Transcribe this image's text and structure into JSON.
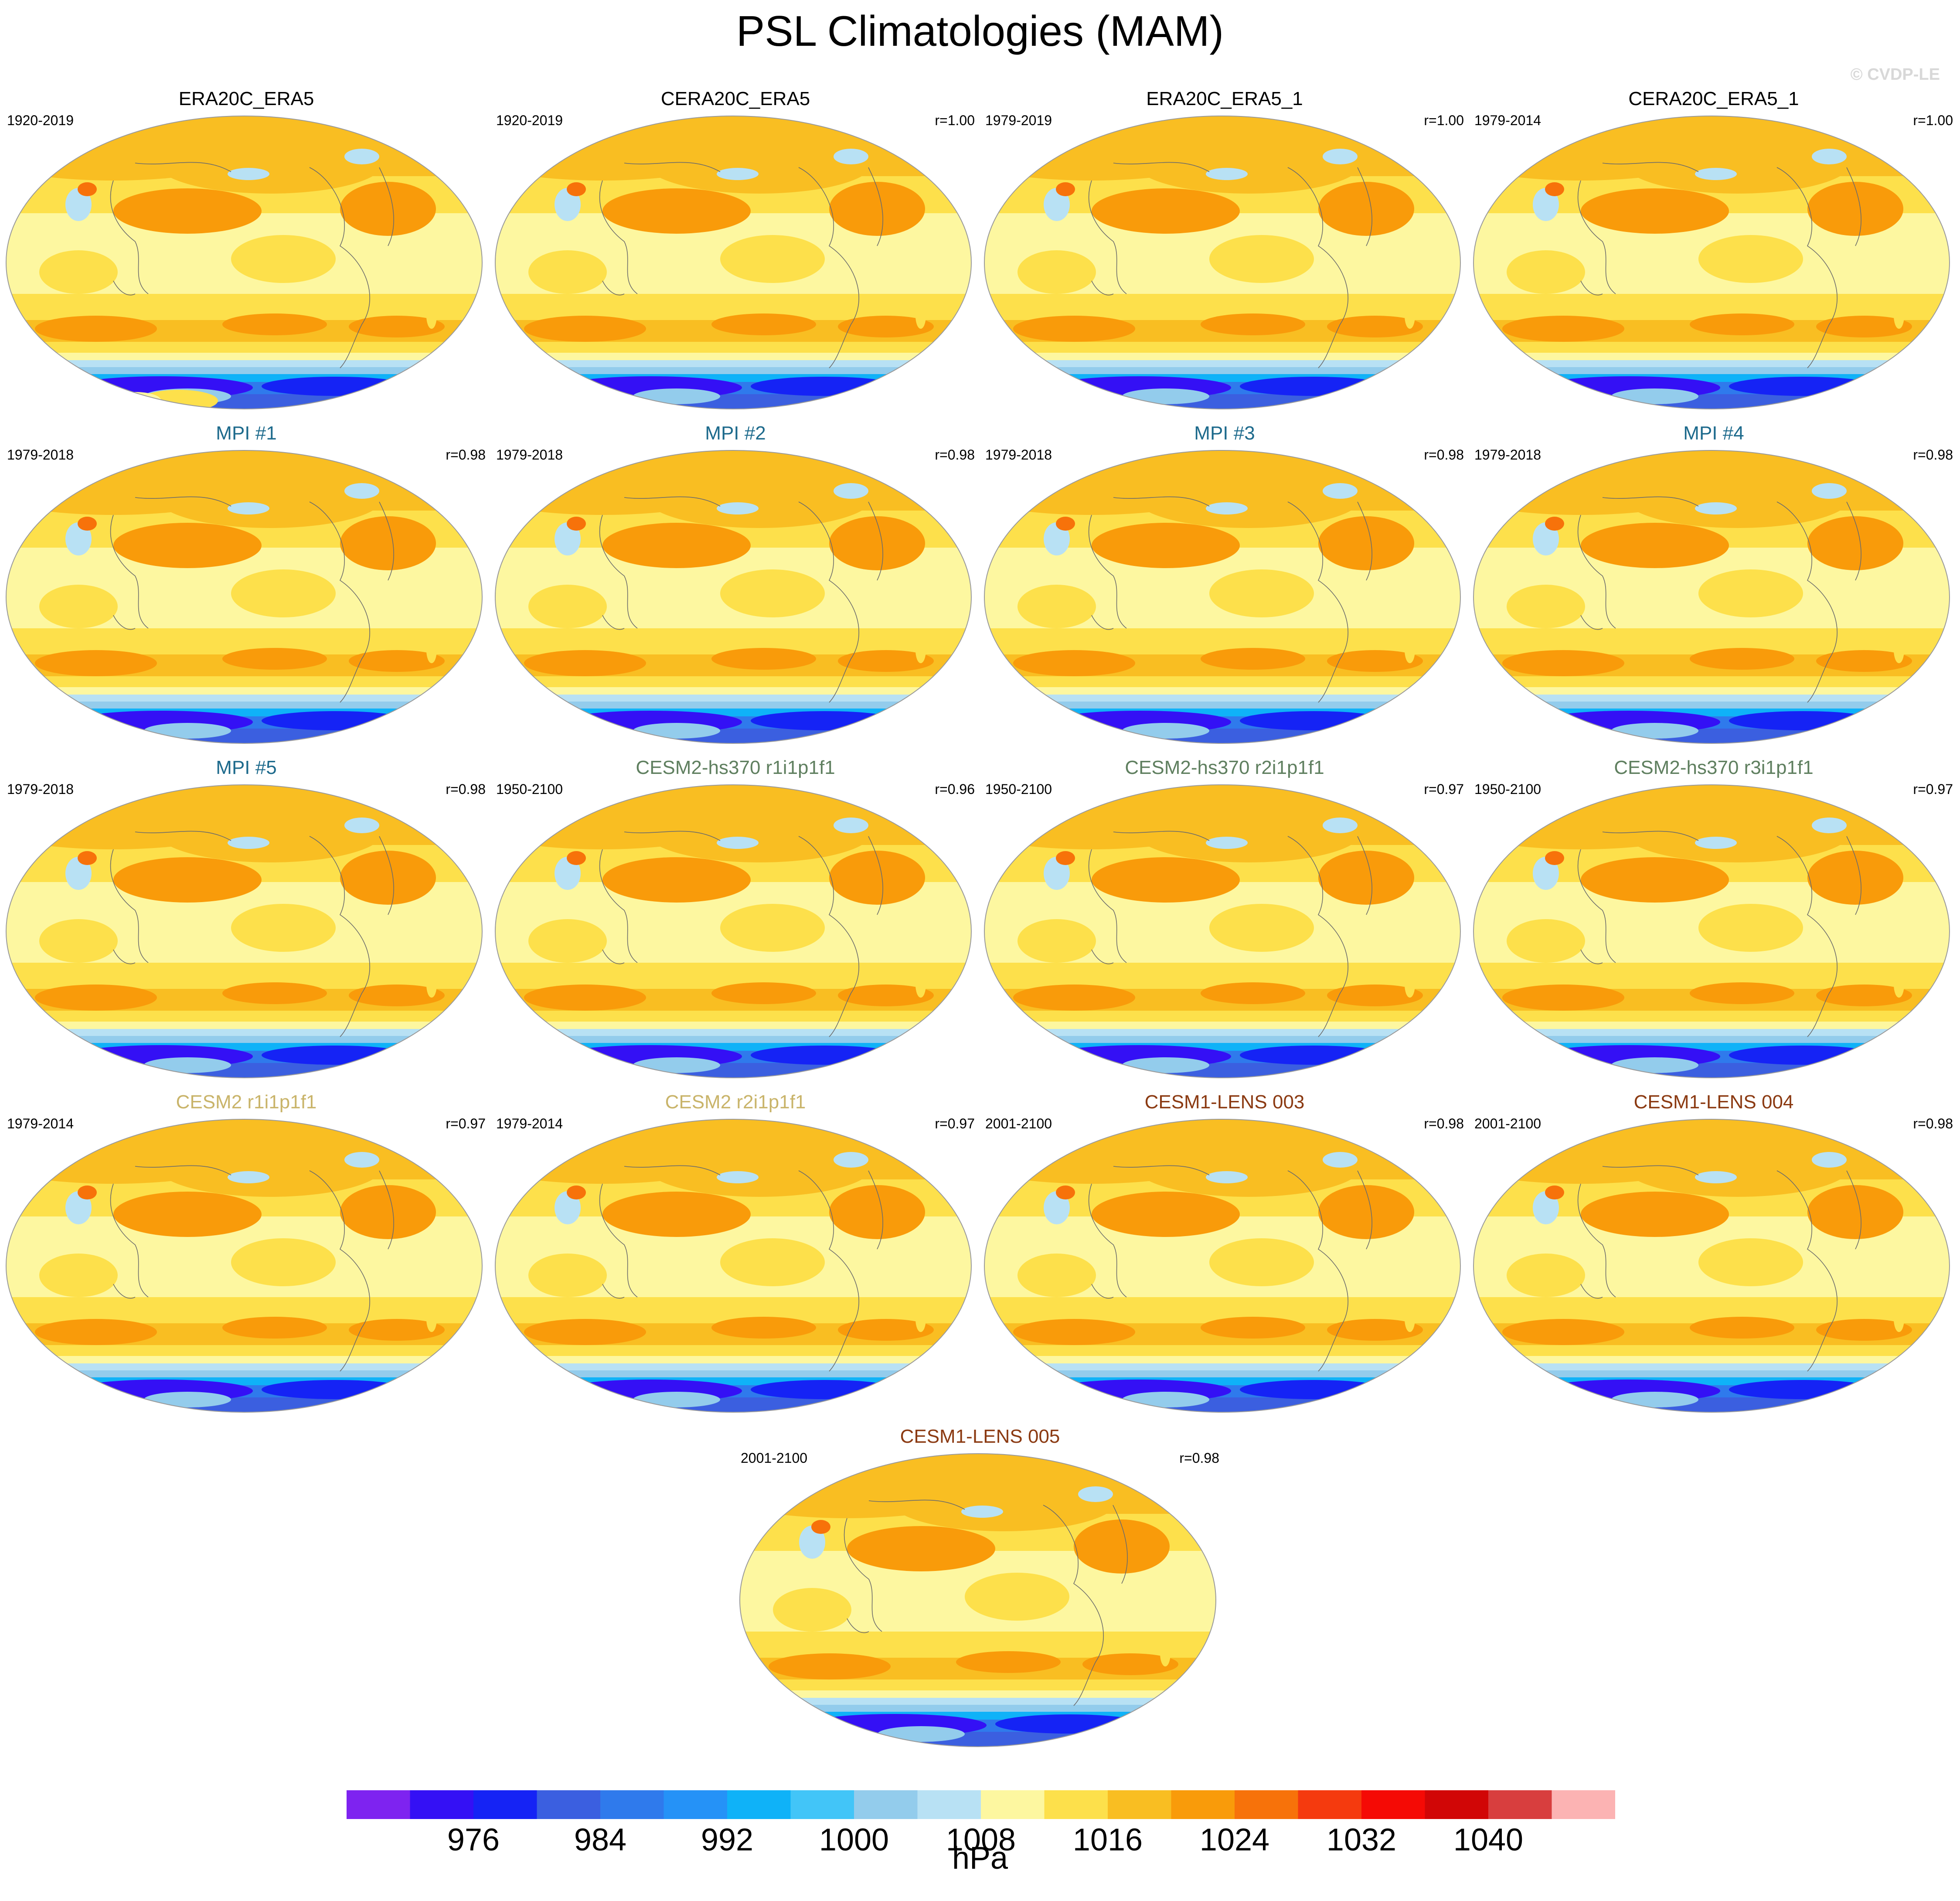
{
  "title": "PSL Climatologies (MAM)",
  "credit": "© CVDP-LE",
  "chart_data": {
    "type": "heatmap",
    "variable": "PSL",
    "season": "MAM",
    "panels": [
      {
        "name": "ERA20C_ERA5",
        "years": "1920-2019",
        "corr": "",
        "color": "#000000"
      },
      {
        "name": "CERA20C_ERA5",
        "years": "1920-2019",
        "corr": "r=1.00",
        "color": "#000000"
      },
      {
        "name": "ERA20C_ERA5_1",
        "years": "1979-2019",
        "corr": "r=1.00",
        "color": "#000000"
      },
      {
        "name": "CERA20C_ERA5_1",
        "years": "1979-2014",
        "corr": "r=1.00",
        "color": "#000000"
      },
      {
        "name": "MPI #1",
        "years": "1979-2018",
        "corr": "r=0.98",
        "color": "#1d6a8c"
      },
      {
        "name": "MPI #2",
        "years": "1979-2018",
        "corr": "r=0.98",
        "color": "#1d6a8c"
      },
      {
        "name": "MPI #3",
        "years": "1979-2018",
        "corr": "r=0.98",
        "color": "#1d6a8c"
      },
      {
        "name": "MPI #4",
        "years": "1979-2018",
        "corr": "r=0.98",
        "color": "#1d6a8c"
      },
      {
        "name": "MPI #5",
        "years": "1979-2018",
        "corr": "r=0.98",
        "color": "#1d6a8c"
      },
      {
        "name": "CESM2-hs370 r1i1p1f1",
        "years": "1950-2100",
        "corr": "r=0.96",
        "color": "#5f7f5f"
      },
      {
        "name": "CESM2-hs370 r2i1p1f1",
        "years": "1950-2100",
        "corr": "r=0.97",
        "color": "#5f7f5f"
      },
      {
        "name": "CESM2-hs370 r3i1p1f1",
        "years": "1950-2100",
        "corr": "r=0.97",
        "color": "#5f7f5f"
      },
      {
        "name": "CESM2 r1i1p1f1",
        "years": "1979-2014",
        "corr": "r=0.97",
        "color": "#c9b46a"
      },
      {
        "name": "CESM2 r2i1p1f1",
        "years": "1979-2014",
        "corr": "r=0.97",
        "color": "#c9b46a"
      },
      {
        "name": "CESM1-LENS 003",
        "years": "2001-2100",
        "corr": "r=0.98",
        "color": "#8b3a12"
      },
      {
        "name": "CESM1-LENS 004",
        "years": "2001-2100",
        "corr": "r=0.98",
        "color": "#8b3a12"
      },
      {
        "name": "CESM1-LENS 005",
        "years": "2001-2100",
        "corr": "r=0.98",
        "color": "#8b3a12"
      }
    ],
    "colorbar": {
      "unit": "hPa",
      "levels": [
        972,
        976,
        980,
        984,
        988,
        992,
        996,
        1000,
        1004,
        1008,
        1012,
        1016,
        1020,
        1024,
        1028,
        1032,
        1036,
        1040,
        1044
      ],
      "tick_labels": [
        976,
        984,
        992,
        1000,
        1008,
        1016,
        1024,
        1032,
        1040
      ],
      "colors": [
        "#7e23f0",
        "#3410f5",
        "#1523f5",
        "#3b5fe0",
        "#2f7aec",
        "#2592f7",
        "#0fb2f8",
        "#42c5f8",
        "#93ccec",
        "#b8e1f4",
        "#fdf7a0",
        "#fde04b",
        "#f9be22",
        "#f99b0a",
        "#f7720a",
        "#f53a0e",
        "#f50a05",
        "#d10606",
        "#d83e3e",
        "#fcb3b3"
      ]
    }
  }
}
